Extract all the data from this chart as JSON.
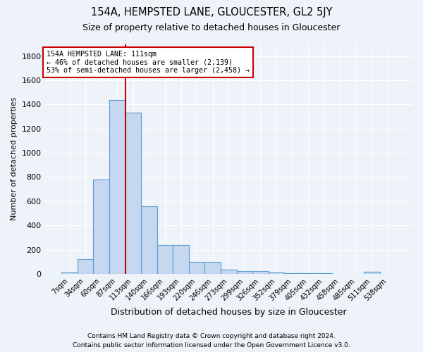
{
  "title": "154A, HEMPSTED LANE, GLOUCESTER, GL2 5JY",
  "subtitle": "Size of property relative to detached houses in Gloucester",
  "xlabel": "Distribution of detached houses by size in Gloucester",
  "ylabel": "Number of detached properties",
  "categories": [
    "7sqm",
    "34sqm",
    "60sqm",
    "87sqm",
    "113sqm",
    "140sqm",
    "166sqm",
    "193sqm",
    "220sqm",
    "246sqm",
    "273sqm",
    "299sqm",
    "326sqm",
    "352sqm",
    "379sqm",
    "405sqm",
    "432sqm",
    "458sqm",
    "485sqm",
    "511sqm",
    "538sqm"
  ],
  "values": [
    10,
    120,
    780,
    1440,
    1330,
    560,
    240,
    240,
    100,
    100,
    35,
    25,
    20,
    12,
    8,
    5,
    3,
    2,
    2,
    15,
    2
  ],
  "bar_color": "#c5d8f0",
  "bar_edge_color": "#5b9bd5",
  "vline_position": 3.5,
  "marker_label": "154A HEMPSTED LANE: 111sqm",
  "annotation_line1": "← 46% of detached houses are smaller (2,139)",
  "annotation_line2": "53% of semi-detached houses are larger (2,458) →",
  "vline_color": "#cc0000",
  "footnote1": "Contains HM Land Registry data © Crown copyright and database right 2024.",
  "footnote2": "Contains public sector information licensed under the Open Government Licence v3.0.",
  "background_color": "#eef2f9",
  "grid_color": "#dde4f0",
  "ylim": [
    0,
    1900
  ],
  "yticks": [
    0,
    200,
    400,
    600,
    800,
    1000,
    1200,
    1400,
    1600,
    1800
  ]
}
